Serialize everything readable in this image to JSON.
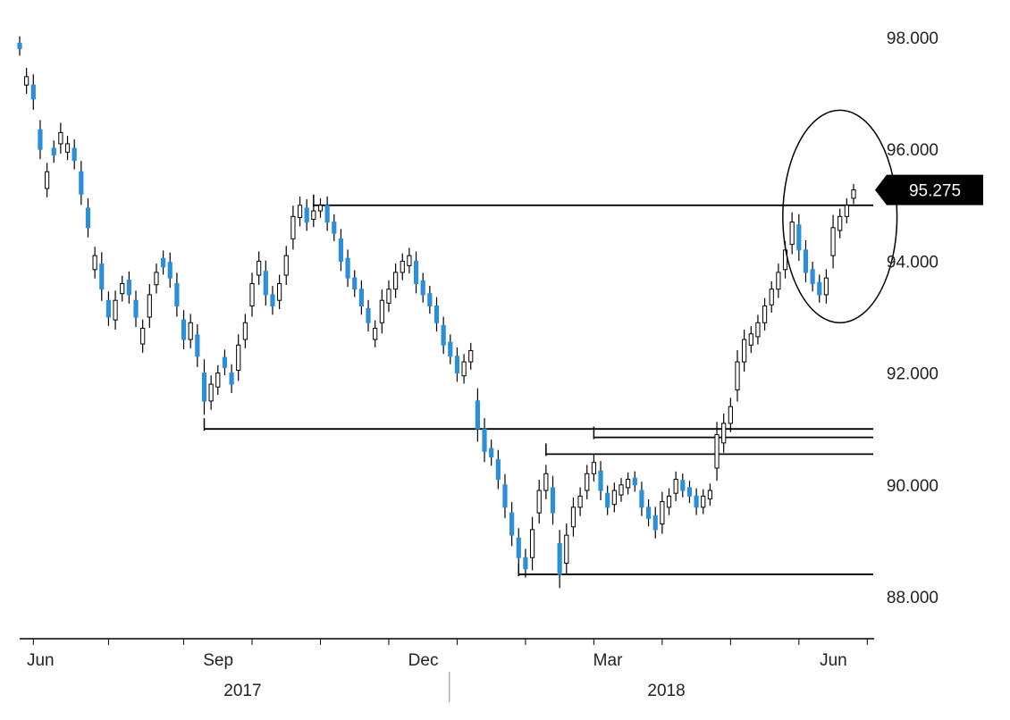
{
  "chart_data": {
    "type": "candlestick",
    "y_ticks": [
      "98.000",
      "96.000",
      "94.000",
      "92.000",
      "90.000",
      "88.000"
    ],
    "y_tick_values": [
      98,
      96,
      94,
      92,
      90,
      88
    ],
    "ylim": [
      87.3,
      98.5
    ],
    "x_month_labels": [
      "Jun",
      "Sep",
      "Dec",
      "Mar",
      "Jun"
    ],
    "x_year_labels": [
      "2017",
      "2018"
    ],
    "last_price_label": "95.275",
    "last_price": 95.275,
    "colors": {
      "up": "#ffffff",
      "down": "#2b8fd9",
      "wick": "#000000",
      "annotation": "#000000"
    },
    "series": [
      {
        "name": "",
        "close": [
          97.8,
          97.3,
          96.9,
          96.0,
          95.6,
          95.9,
          96.3,
          96.1,
          95.8,
          95.2,
          94.6,
          94.1,
          93.5,
          93.0,
          93.3,
          93.6,
          93.4,
          93.0,
          92.8,
          93.4,
          93.8,
          93.9,
          93.7,
          93.2,
          92.6,
          92.9,
          92.3,
          91.5,
          91.8,
          92.0,
          92.1,
          91.8,
          92.5,
          92.9,
          93.6,
          94.0,
          93.4,
          93.2,
          93.6,
          94.1,
          94.8,
          95.0,
          94.7,
          94.9,
          95.0,
          94.7,
          94.5,
          94.0,
          93.7,
          93.5,
          93.2,
          92.9,
          92.8,
          93.3,
          93.5,
          93.8,
          94.0,
          94.1,
          93.6,
          93.4,
          93.2,
          92.9,
          92.5,
          92.3,
          92.0,
          92.2,
          92.4,
          91.0,
          90.6,
          90.5,
          90.1,
          89.6,
          89.1,
          88.7,
          88.5,
          89.2,
          89.9,
          90.2,
          89.5,
          88.4,
          89.1,
          89.6,
          89.8,
          90.2,
          90.4,
          89.9,
          89.6,
          89.9,
          90.0,
          90.1,
          90.0,
          89.6,
          89.4,
          89.2,
          89.7,
          89.8,
          90.1,
          89.9,
          89.8,
          89.6,
          89.8,
          89.9,
          90.9,
          91.1,
          91.4,
          92.2,
          92.6,
          92.7,
          92.9,
          93.2,
          93.5,
          93.8,
          94.2,
          94.7,
          94.2,
          93.8,
          93.6,
          93.4,
          93.7,
          94.6,
          94.8,
          95.0,
          95.275
        ],
        "open_offset": [
          0.1,
          -0.15,
          0.25,
          0.35,
          -0.3,
          0.12,
          -0.2,
          -0.15,
          0.22,
          0.4,
          0.35,
          -0.25,
          0.45,
          0.3,
          -0.35,
          -0.18,
          0.26,
          0.3,
          -0.28,
          -0.4,
          -0.22,
          0.15,
          0.28,
          0.4,
          0.35,
          -0.3,
          0.38,
          0.5,
          -0.3,
          -0.25,
          0.18,
          0.2,
          -0.45,
          -0.3,
          -0.4,
          -0.25,
          0.42,
          0.2,
          -0.3,
          -0.35,
          -0.4,
          -0.22,
          0.25,
          -0.15,
          -0.1,
          0.3,
          0.2,
          0.4,
          0.35,
          0.2,
          0.3,
          0.25,
          -0.2,
          -0.4,
          -0.25,
          -0.3,
          -0.2,
          -0.18,
          0.4,
          0.25,
          0.22,
          0.3,
          0.35,
          0.25,
          0.3,
          -0.25,
          -0.2,
          0.5,
          0.4,
          0.15,
          0.35,
          0.4,
          0.4,
          0.35,
          0.2,
          -0.5,
          -0.4,
          -0.3,
          0.45,
          0.55,
          -0.5,
          -0.35,
          -0.2,
          -0.3,
          -0.2,
          0.35,
          0.25,
          -0.25,
          -0.18,
          -0.15,
          0.12,
          0.3,
          0.2,
          0.25,
          -0.4,
          -0.2,
          -0.25,
          0.18,
          0.15,
          0.2,
          -0.2,
          -0.15,
          -0.6,
          -0.35,
          -0.3,
          -0.5,
          -0.4,
          -0.2,
          -0.25,
          -0.3,
          -0.28,
          -0.3,
          -0.35,
          -0.4,
          0.45,
          0.4,
          0.25,
          0.22,
          -0.3,
          -0.5,
          -0.25,
          -0.2,
          -0.15
        ],
        "range": [
          0.35,
          0.45,
          0.55,
          0.5,
          0.45,
          0.4,
          0.5,
          0.4,
          0.45,
          0.55,
          0.5,
          0.45,
          0.6,
          0.45,
          0.5,
          0.4,
          0.45,
          0.5,
          0.45,
          0.55,
          0.45,
          0.4,
          0.5,
          0.55,
          0.5,
          0.45,
          0.55,
          0.7,
          0.45,
          0.4,
          0.4,
          0.45,
          0.55,
          0.45,
          0.55,
          0.5,
          0.55,
          0.45,
          0.45,
          0.5,
          0.55,
          0.45,
          0.45,
          0.4,
          0.35,
          0.45,
          0.4,
          0.5,
          0.45,
          0.4,
          0.45,
          0.45,
          0.4,
          0.55,
          0.45,
          0.45,
          0.4,
          0.4,
          0.5,
          0.4,
          0.4,
          0.45,
          0.45,
          0.4,
          0.45,
          0.4,
          0.4,
          0.65,
          0.55,
          0.45,
          0.5,
          0.55,
          0.55,
          0.5,
          0.45,
          0.65,
          0.55,
          0.45,
          0.6,
          0.7,
          0.6,
          0.5,
          0.45,
          0.45,
          0.4,
          0.5,
          0.4,
          0.4,
          0.35,
          0.35,
          0.35,
          0.45,
          0.4,
          0.45,
          0.5,
          0.4,
          0.4,
          0.35,
          0.35,
          0.4,
          0.35,
          0.35,
          0.65,
          0.5,
          0.45,
          0.6,
          0.5,
          0.4,
          0.4,
          0.4,
          0.4,
          0.45,
          0.45,
          0.5,
          0.55,
          0.5,
          0.4,
          0.4,
          0.45,
          0.65,
          0.4,
          0.35,
          0.3
        ]
      }
    ],
    "resistance_lines": [
      {
        "level": 95.0,
        "from_index": 43
      },
      {
        "level": 91.0,
        "from_index": 27
      },
      {
        "level": 90.85,
        "from_index": 84
      },
      {
        "level": 90.55,
        "from_index": 77
      },
      {
        "level": 88.4,
        "from_index": 73
      }
    ],
    "highlight_ellipse": {
      "from_index": 114,
      "to_index": 126,
      "y_top": 96.7,
      "y_bottom": 92.9
    },
    "x_month_label_indices": [
      2,
      28,
      58,
      85,
      118
    ],
    "x_year_label_indices": [
      30,
      92
    ],
    "x_tick_indices": [
      2,
      13,
      24,
      34,
      44,
      54,
      64,
      74,
      84,
      94,
      104,
      114,
      124
    ],
    "year_divider_index": 63,
    "grid": false,
    "legend": "none"
  }
}
